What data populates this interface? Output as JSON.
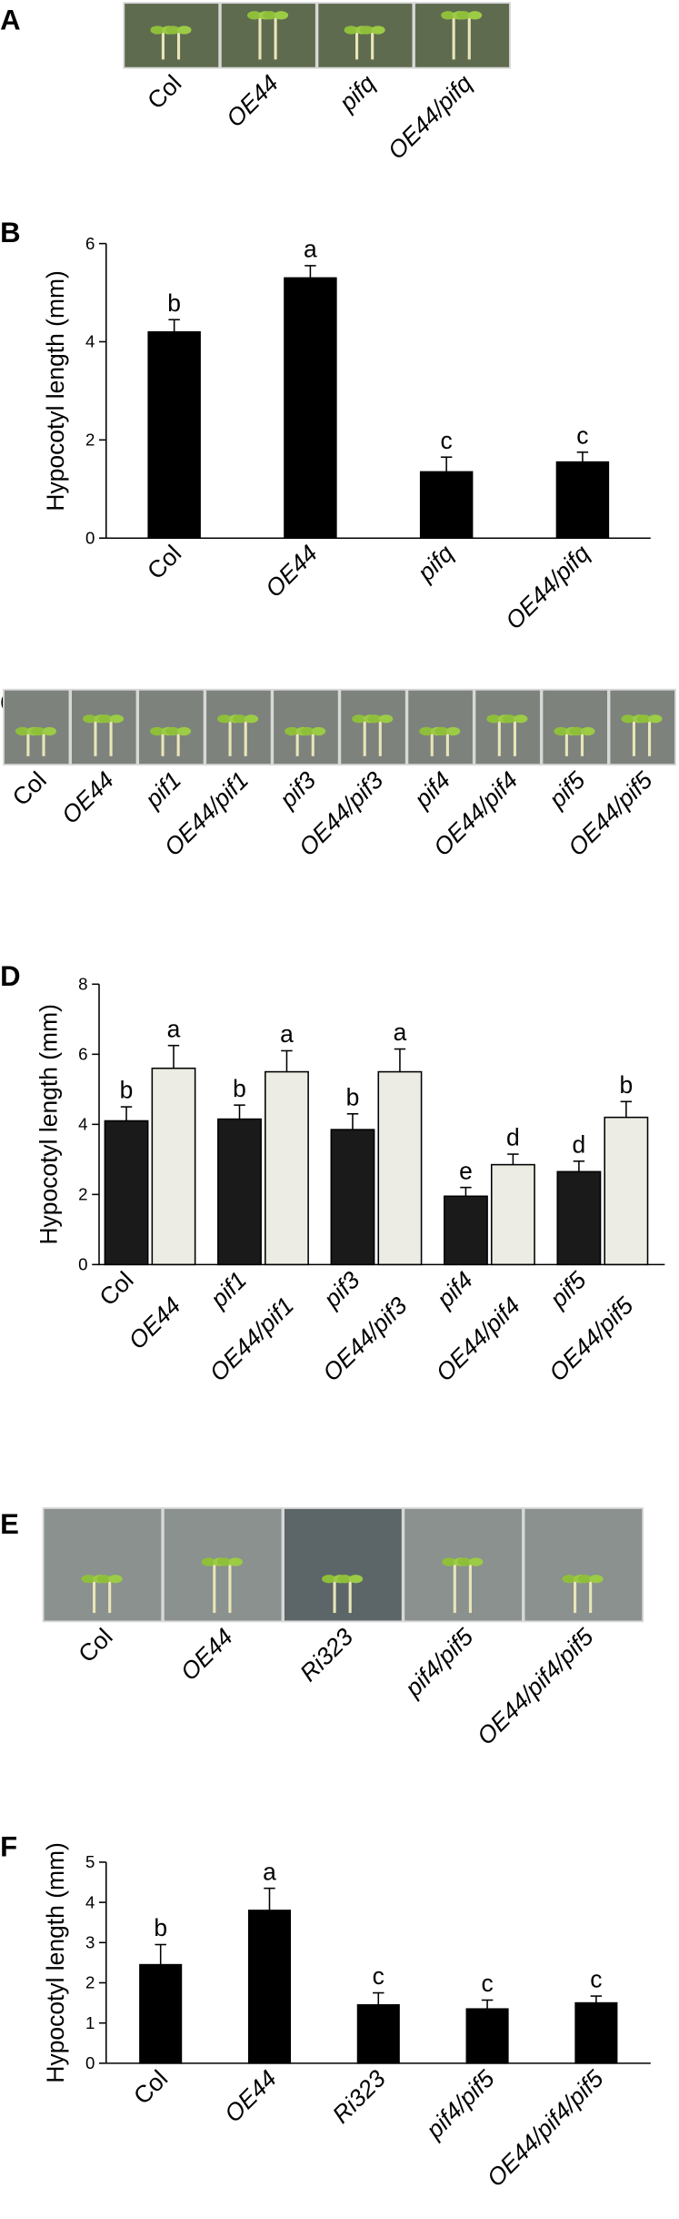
{
  "photo_panels": [
    {
      "panel": "A",
      "labels": [
        "Col",
        "OE44",
        "pifq",
        "OE44/pifq"
      ]
    },
    {
      "panel": "C",
      "labels": [
        "Col",
        "OE44",
        "pif1",
        "OE44/pif1",
        "pif3",
        "OE44/pif3",
        "pif4",
        "OE44/pif4",
        "pif5",
        "OE44/pif5"
      ]
    },
    {
      "panel": "E",
      "labels": [
        "Col",
        "OE44",
        "Ri323",
        "pif4/pif5",
        "OE44/pif4/pif5"
      ]
    }
  ],
  "chart_data": [
    {
      "type": "bar",
      "panel": "B",
      "y_label": "Hypocotyl length (mm)",
      "categories": [
        "Col",
        "OE44",
        "pifq",
        "OE44/pifq"
      ],
      "values": [
        4.2,
        5.3,
        1.35,
        1.55
      ],
      "errors": [
        0.25,
        0.25,
        0.3,
        0.2
      ],
      "annotations": [
        "b",
        "a",
        "c",
        "c"
      ],
      "color": "#000000",
      "ylim": [
        0,
        6
      ],
      "yticks": [
        0,
        2,
        4,
        6
      ]
    },
    {
      "type": "bar",
      "panel": "D",
      "y_label": "Hypocotyl length (mm)",
      "categories": [
        "Col",
        "OE44",
        "pif1",
        "OE44/pif1",
        "pif3",
        "OE44/pif3",
        "pif4",
        "OE44/pif4",
        "pif5",
        "OE44/pif5"
      ],
      "values": [
        4.1,
        5.6,
        4.15,
        5.5,
        3.85,
        5.5,
        1.95,
        2.85,
        2.65,
        4.2
      ],
      "errors": [
        0.4,
        0.65,
        0.4,
        0.6,
        0.45,
        0.65,
        0.25,
        0.3,
        0.3,
        0.45
      ],
      "annotations": [
        "b",
        "a",
        "b",
        "a",
        "b",
        "a",
        "e",
        "d",
        "d",
        "b"
      ],
      "colors": [
        "#1a1a1a",
        "#ececE4",
        "#1a1a1a",
        "#ececE4",
        "#1a1a1a",
        "#ececE4",
        "#1a1a1a",
        "#ececE4",
        "#1a1a1a",
        "#ececE4"
      ],
      "ylim": [
        0,
        8
      ],
      "yticks": [
        0,
        2,
        4,
        6,
        8
      ]
    },
    {
      "type": "bar",
      "panel": "F",
      "y_label": "Hypocotyl length (mm)",
      "categories": [
        "Col",
        "OE44",
        "Ri323",
        "pif4/pif5",
        "OE44/pif4/pif5"
      ],
      "values": [
        2.45,
        3.8,
        1.45,
        1.35,
        1.5
      ],
      "errors": [
        0.5,
        0.55,
        0.3,
        0.22,
        0.17
      ],
      "annotations": [
        "b",
        "a",
        "c",
        "c",
        "c"
      ],
      "color": "#000000",
      "ylim": [
        0,
        5
      ],
      "yticks": [
        0,
        1,
        2,
        3,
        4,
        5
      ]
    }
  ]
}
